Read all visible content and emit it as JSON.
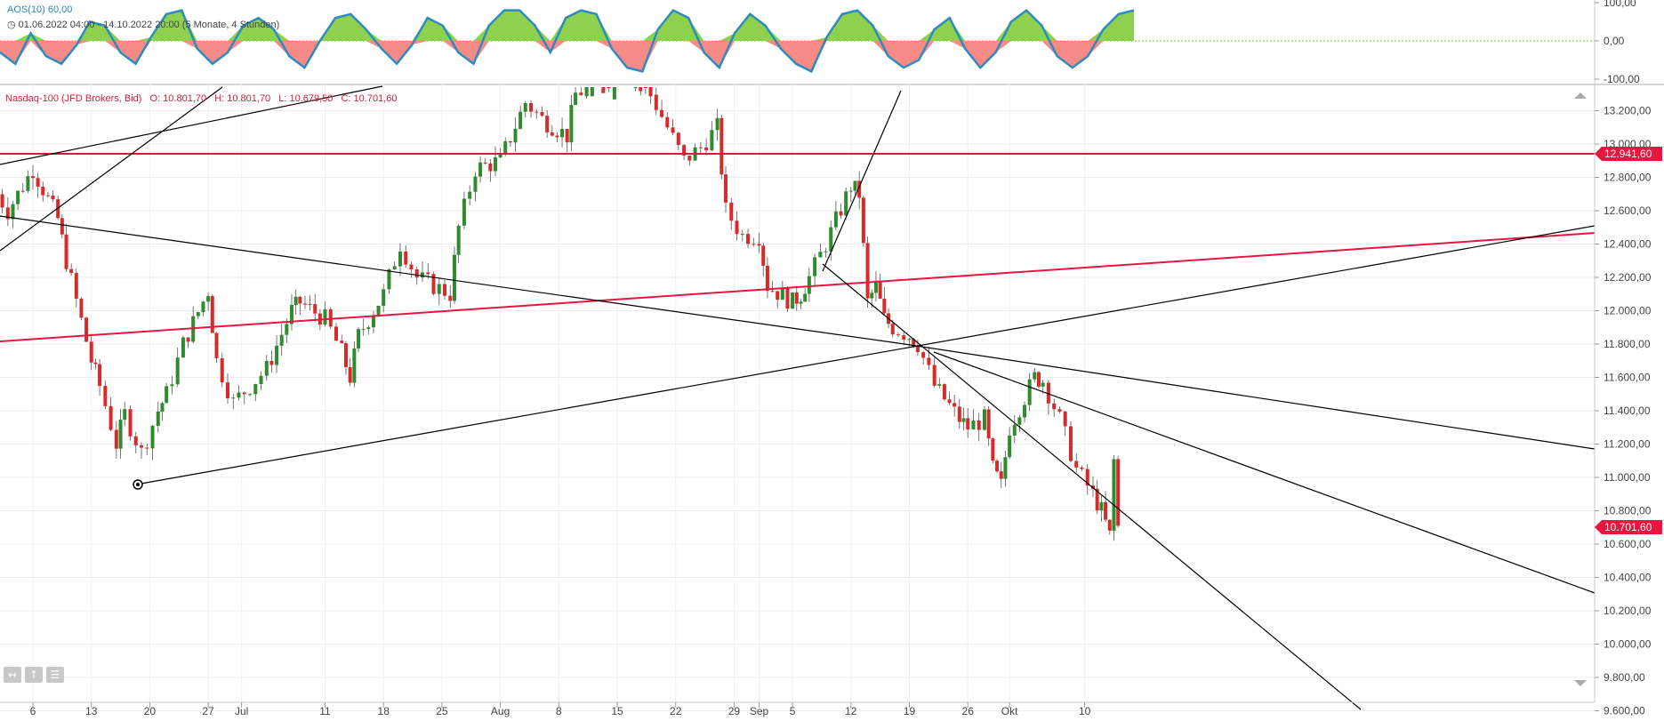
{
  "oscillator": {
    "name": "AOS(10)",
    "value": "60,00",
    "date_range": "01.06.2022 04:00 - 14.10.2022 20:00",
    "range_note": "(5 Monate, 4 Stunden)",
    "axis_labels": [
      "100,00",
      "0,00",
      "-100,00"
    ],
    "positive_color": "#8fd14f",
    "negative_color": "#f58a86",
    "line_color": "#2e8bc0"
  },
  "main": {
    "instrument": "Nasdaq-100 (JFD Brokers, Bid)",
    "open": "O: 10.801,70",
    "high": "H: 10.801,70",
    "low": "L: 10.679,50",
    "close": "C: 10.701,60",
    "price_labels": [
      "13.200,00",
      "13.000,00",
      "12.800,00",
      "12.600,00",
      "12.400,00",
      "12.200,00",
      "12.000,00",
      "11.800,00",
      "11.600,00",
      "11.400,00",
      "11.200,00",
      "11.000,00",
      "10.800,00",
      "10.600,00",
      "10.400,00",
      "10.200,00",
      "10.000,00",
      "9.800,00",
      "9.600,00"
    ],
    "horizontal_line_label": "12.941,60",
    "last_price_label": "10.701,60",
    "up_color": "#2e8b2e",
    "down_color": "#d62b2b",
    "line_color": "#e8163f"
  },
  "x_axis_labels": [
    "6",
    "13",
    "20",
    "27",
    "Jul",
    "11",
    "18",
    "25",
    "Aug",
    "8",
    "15",
    "22",
    "29",
    "Sep",
    "5",
    "12",
    "19",
    "26",
    "Okt",
    "10"
  ],
  "chart_data": {
    "type": "candlestick",
    "title": "Nasdaq-100 (JFD Brokers, Bid)",
    "interval": "4 Stunden",
    "x_range": [
      "01.06.2022",
      "14.10.2022"
    ],
    "ylim": [
      9600,
      13300
    ],
    "y_ticks": [
      13200,
      13000,
      12800,
      12600,
      12400,
      12200,
      12000,
      11800,
      11600,
      11400,
      11200,
      11000,
      10800,
      10600,
      10400,
      10200,
      10000,
      9800,
      9600
    ],
    "close_path": [
      [
        "2022-06-01",
        12750
      ],
      [
        "2022-06-03",
        12600
      ],
      [
        "2022-06-06",
        12850
      ],
      [
        "2022-06-09",
        12550
      ],
      [
        "2022-06-10",
        12300
      ],
      [
        "2022-06-13",
        11700
      ],
      [
        "2022-06-14",
        11550
      ],
      [
        "2022-06-16",
        11200
      ],
      [
        "2022-06-17",
        11380
      ],
      [
        "2022-06-19",
        11150
      ],
      [
        "2022-06-21",
        11400
      ],
      [
        "2022-06-22",
        11500
      ],
      [
        "2022-06-24",
        11800
      ],
      [
        "2022-06-27",
        12120
      ],
      [
        "2022-06-28",
        11700
      ],
      [
        "2022-06-30",
        11450
      ],
      [
        "2022-07-04",
        11650
      ],
      [
        "2022-07-07",
        12000
      ],
      [
        "2022-07-08",
        12050
      ],
      [
        "2022-07-11",
        11950
      ],
      [
        "2022-07-13",
        11750
      ],
      [
        "2022-07-14",
        11600
      ],
      [
        "2022-07-15",
        11850
      ],
      [
        "2022-07-18",
        12100
      ],
      [
        "2022-07-20",
        12400
      ],
      [
        "2022-07-22",
        12200
      ],
      [
        "2022-07-26",
        12100
      ],
      [
        "2022-07-27",
        12500
      ],
      [
        "2022-07-29",
        12850
      ],
      [
        "2022-08-01",
        12900
      ],
      [
        "2022-08-04",
        13250
      ],
      [
        "2022-08-06",
        13150
      ],
      [
        "2022-08-09",
        13050
      ],
      [
        "2022-08-10",
        13300
      ],
      [
        "2022-08-16",
        13450
      ],
      [
        "2022-08-19",
        13300
      ],
      [
        "2022-08-21",
        13100
      ],
      [
        "2022-08-23",
        12900
      ],
      [
        "2022-08-25",
        12980
      ],
      [
        "2022-08-27",
        13100
      ],
      [
        "2022-08-28",
        12600
      ],
      [
        "2022-08-30",
        12450
      ],
      [
        "2022-09-01",
        12450
      ],
      [
        "2022-09-02",
        12150
      ],
      [
        "2022-09-05",
        12050
      ],
      [
        "2022-09-06",
        12100
      ],
      [
        "2022-09-07",
        12200
      ],
      [
        "2022-09-09",
        12400
      ],
      [
        "2022-09-12",
        12750
      ],
      [
        "2022-09-13",
        12700
      ],
      [
        "2022-09-14",
        12050
      ],
      [
        "2022-09-15",
        12150
      ],
      [
        "2022-09-16",
        11950
      ],
      [
        "2022-09-17",
        11900
      ],
      [
        "2022-09-19",
        11850
      ],
      [
        "2022-09-20",
        11800
      ],
      [
        "2022-09-22",
        11550
      ],
      [
        "2022-09-25",
        11350
      ],
      [
        "2022-09-26",
        11300
      ],
      [
        "2022-09-28",
        11350
      ],
      [
        "2022-09-29",
        11050
      ],
      [
        "2022-09-30",
        10950
      ],
      [
        "2022-10-01",
        11300
      ],
      [
        "2022-10-04",
        11600
      ],
      [
        "2022-10-05",
        11580
      ],
      [
        "2022-10-07",
        11350
      ],
      [
        "2022-10-09",
        11050
      ],
      [
        "2022-10-11",
        10900
      ],
      [
        "2022-10-12",
        10800
      ],
      [
        "2022-10-13",
        10650
      ],
      [
        "2022-10-13T12",
        11100
      ],
      [
        "2022-10-14",
        10701.6
      ]
    ],
    "last": {
      "open": 10801.7,
      "high": 10801.7,
      "low": 10679.5,
      "close": 10701.6
    },
    "horizontal_lines": [
      12941.6
    ],
    "oscillator": {
      "name": "AOS(10)",
      "ylim": [
        -100,
        100
      ],
      "y_ticks": [
        100,
        0,
        -100
      ],
      "segments": [
        [
          0,
          -30
        ],
        [
          12,
          -60
        ],
        [
          24,
          20
        ],
        [
          36,
          -40
        ],
        [
          48,
          -60
        ],
        [
          60,
          -10
        ],
        [
          70,
          50
        ],
        [
          82,
          40
        ],
        [
          94,
          -30
        ],
        [
          106,
          -60
        ],
        [
          118,
          10
        ],
        [
          130,
          70
        ],
        [
          142,
          80
        ],
        [
          154,
          -20
        ],
        [
          166,
          -60
        ],
        [
          178,
          -30
        ],
        [
          190,
          40
        ],
        [
          202,
          60
        ],
        [
          214,
          30
        ],
        [
          226,
          -40
        ],
        [
          238,
          -70
        ],
        [
          250,
          0
        ],
        [
          262,
          60
        ],
        [
          274,
          70
        ],
        [
          286,
          30
        ],
        [
          298,
          -20
        ],
        [
          310,
          -60
        ],
        [
          322,
          -10
        ],
        [
          334,
          60
        ],
        [
          346,
          40
        ],
        [
          358,
          -30
        ],
        [
          370,
          -60
        ],
        [
          382,
          40
        ],
        [
          394,
          80
        ],
        [
          406,
          80
        ],
        [
          418,
          40
        ],
        [
          430,
          -30
        ],
        [
          442,
          60
        ],
        [
          454,
          80
        ],
        [
          466,
          70
        ],
        [
          478,
          -20
        ],
        [
          490,
          -70
        ],
        [
          502,
          -80
        ],
        [
          514,
          30
        ],
        [
          526,
          80
        ],
        [
          538,
          60
        ],
        [
          550,
          -30
        ],
        [
          562,
          -70
        ],
        [
          574,
          20
        ],
        [
          586,
          70
        ],
        [
          598,
          40
        ],
        [
          610,
          -20
        ],
        [
          622,
          -60
        ],
        [
          634,
          -80
        ],
        [
          646,
          10
        ],
        [
          658,
          70
        ],
        [
          670,
          80
        ],
        [
          682,
          40
        ],
        [
          694,
          -40
        ],
        [
          706,
          -70
        ],
        [
          718,
          -50
        ],
        [
          730,
          30
        ],
        [
          742,
          60
        ],
        [
          754,
          -20
        ],
        [
          766,
          -70
        ],
        [
          778,
          -30
        ],
        [
          790,
          50
        ],
        [
          802,
          80
        ],
        [
          814,
          40
        ],
        [
          826,
          -40
        ],
        [
          838,
          -70
        ],
        [
          850,
          -40
        ],
        [
          862,
          30
        ],
        [
          874,
          70
        ],
        [
          886,
          80
        ]
      ],
      "last_value": 60
    }
  }
}
